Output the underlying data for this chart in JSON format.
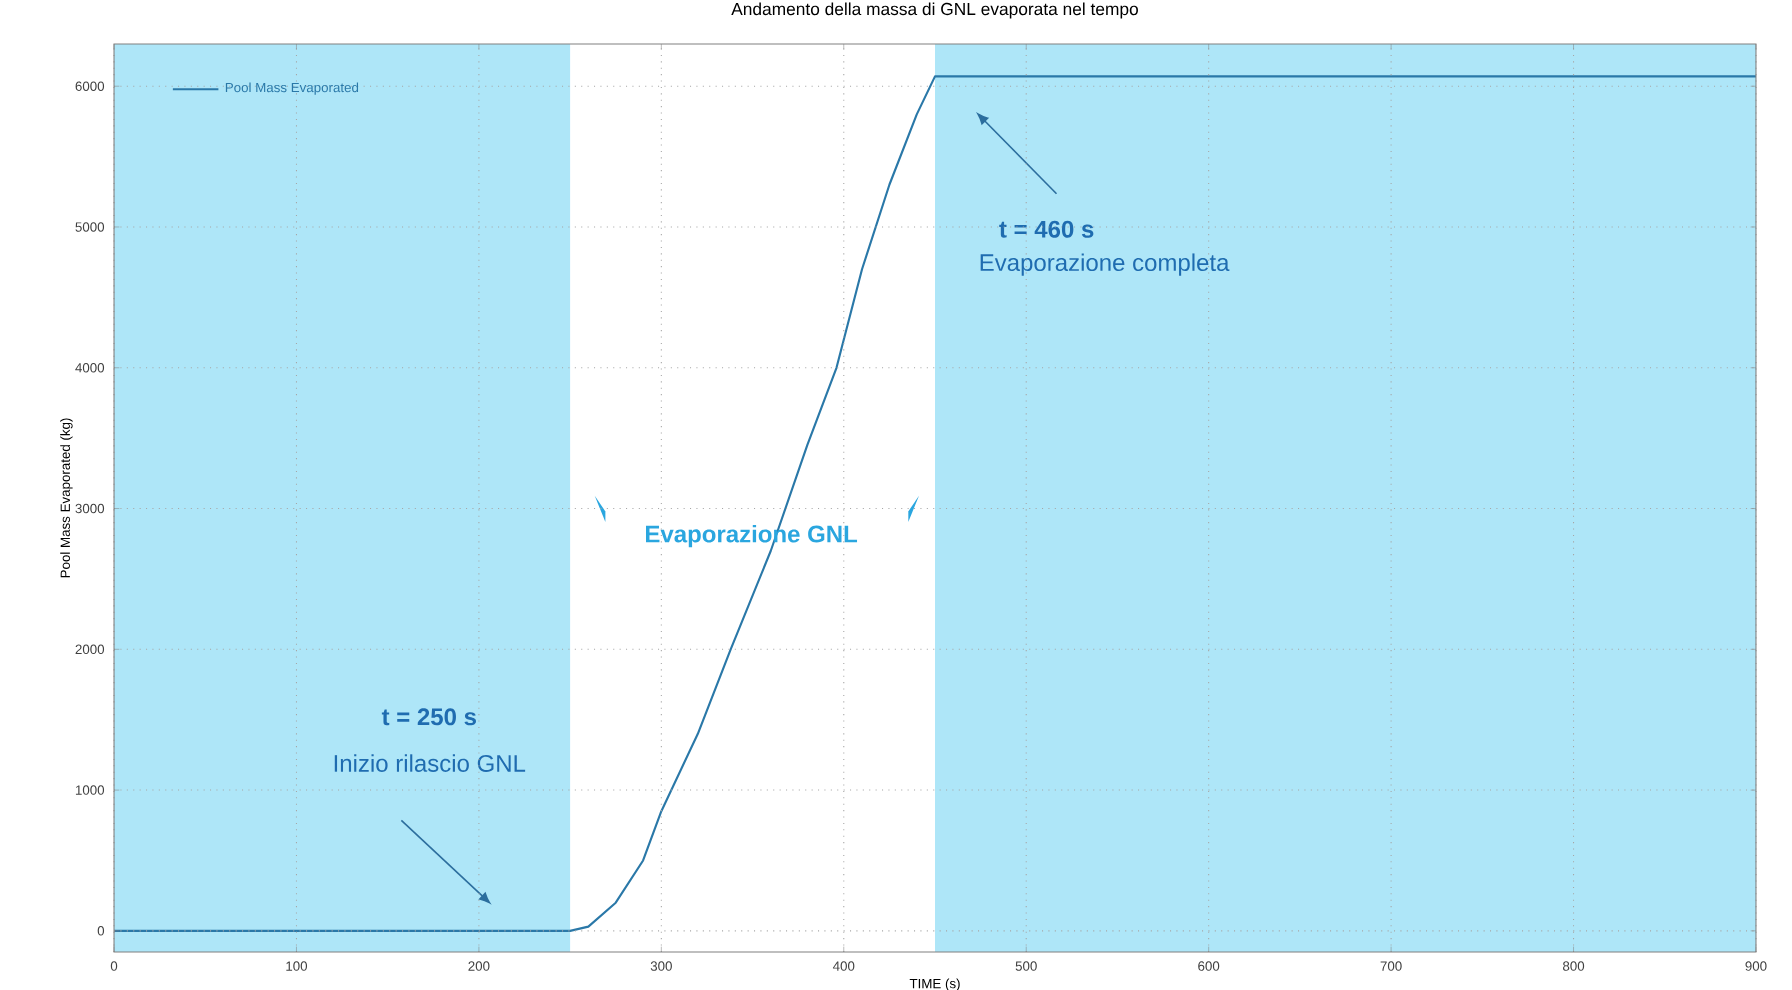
{
  "chart_data": {
    "type": "line",
    "title": "Andamento della massa di GNL evaporata nel tempo",
    "xlabel": "TIME (s)",
    "ylabel": "Pool Mass Evaporated (kg)",
    "x": [
      0,
      250,
      260,
      275,
      290,
      300,
      320,
      338,
      360,
      380,
      396,
      410,
      425,
      440,
      450,
      460,
      900
    ],
    "series": [
      {
        "name": "Pool Mass Evaporated",
        "color": "#2a78a8",
        "values": [
          0,
          0,
          30,
          200,
          500,
          850,
          1400,
          2000,
          2700,
          3450,
          4000,
          4700,
          5300,
          5800,
          6070,
          6070,
          6070
        ]
      }
    ],
    "xlim": [
      0,
      900
    ],
    "xticks": [
      0,
      100,
      200,
      300,
      400,
      500,
      600,
      700,
      800,
      900
    ],
    "ylim": [
      -150,
      6300
    ],
    "yticks": [
      0,
      1000,
      2000,
      3000,
      4000,
      5000,
      6000
    ],
    "grid": true,
    "legend": "top left",
    "line_style": "solid",
    "marker": "none",
    "bands": [
      {
        "axis": "x",
        "from": 0,
        "to": 250,
        "color": "#aee6f8"
      },
      {
        "axis": "x",
        "from": 450,
        "to": 900,
        "color": "#aee6f8"
      }
    ],
    "annotations": [
      "t = 250 s",
      "Inizio rilascio GNL",
      "t = 460 s",
      "Evaporazione completa",
      "Evaporazione GNL"
    ]
  }
}
